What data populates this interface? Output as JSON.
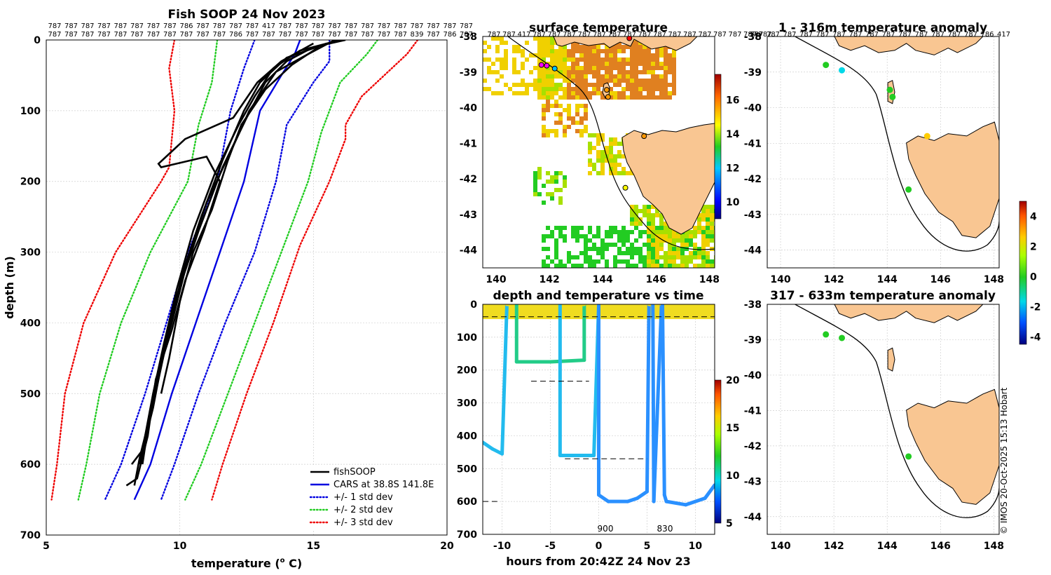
{
  "chart_data": [
    {
      "type": "line",
      "title": "Fish SOOP 24 Nov 2023",
      "xlabel": "temperature (",
      "xlabel_sup": "o",
      "xlabel_end": " C)",
      "ylabel": "depth (m)",
      "xlim": [
        5,
        20
      ],
      "ylim": [
        0,
        700
      ],
      "xticks": [
        5,
        10,
        15,
        20
      ],
      "yticks": [
        0,
        100,
        200,
        300,
        400,
        500,
        600,
        700
      ],
      "top_row1": [
        "787",
        "787",
        "787",
        "787",
        "787",
        "787",
        "787",
        "787",
        "786",
        "787",
        "787",
        "787",
        "787",
        "417",
        "787",
        "787",
        "787",
        "787",
        "787",
        "787",
        "787",
        "787",
        "787",
        "787",
        "787",
        "787"
      ],
      "top_row2": [
        "787",
        "787",
        "787",
        "787",
        "787",
        "787",
        "787",
        "787",
        "787",
        "787",
        "787",
        "786",
        "787",
        "787",
        "787",
        "787",
        "787",
        "787",
        "787",
        "787",
        "787",
        "787",
        "839",
        "787",
        "786",
        "787"
      ],
      "legend": [
        {
          "label": "fishSOOP",
          "color": "#000000",
          "style": "solid"
        },
        {
          "label": "CARS at 38.8S 141.8E",
          "color": "#0000e0",
          "style": "solid"
        },
        {
          "label": "+/- 1 std dev",
          "color": "#0000e0",
          "style": "dotted"
        },
        {
          "label": "+/- 2 std dev",
          "color": "#22cc22",
          "style": "dotted"
        },
        {
          "label": "+/- 3 std dev",
          "color": "#ee0000",
          "style": "dotted"
        }
      ],
      "series": [
        {
          "name": "CARS",
          "color": "#0000e0",
          "style": "solid",
          "points": [
            [
              14.5,
              0
            ],
            [
              14.3,
              20
            ],
            [
              13.8,
              50
            ],
            [
              13.0,
              100
            ],
            [
              12.4,
              200
            ],
            [
              11.5,
              300
            ],
            [
              10.6,
              400
            ],
            [
              9.7,
              500
            ],
            [
              8.9,
              600
            ],
            [
              8.3,
              650
            ]
          ]
        },
        {
          "name": "+1 std",
          "color": "#0000e0",
          "style": "dotted",
          "points": [
            [
              15.6,
              0
            ],
            [
              15.6,
              30
            ],
            [
              15.0,
              60
            ],
            [
              14.0,
              120
            ],
            [
              13.6,
              200
            ],
            [
              12.8,
              300
            ],
            [
              11.7,
              400
            ],
            [
              10.7,
              500
            ],
            [
              9.8,
              600
            ],
            [
              9.3,
              650
            ]
          ]
        },
        {
          "name": "-1 std",
          "color": "#0000e0",
          "style": "dotted",
          "points": [
            [
              12.8,
              0
            ],
            [
              12.4,
              40
            ],
            [
              11.9,
              100
            ],
            [
              11.4,
              200
            ],
            [
              10.3,
              300
            ],
            [
              9.5,
              400
            ],
            [
              8.7,
              500
            ],
            [
              7.8,
              600
            ],
            [
              7.2,
              650
            ]
          ]
        },
        {
          "name": "+2 std",
          "color": "#22cc22",
          "style": "dotted",
          "points": [
            [
              17.4,
              0
            ],
            [
              17.0,
              20
            ],
            [
              16.0,
              60
            ],
            [
              15.3,
              130
            ],
            [
              14.8,
              200
            ],
            [
              14.0,
              280
            ],
            [
              12.8,
              400
            ],
            [
              11.8,
              500
            ],
            [
              10.8,
              600
            ],
            [
              10.2,
              650
            ]
          ]
        },
        {
          "name": "-2 std",
          "color": "#22cc22",
          "style": "dotted",
          "points": [
            [
              11.4,
              0
            ],
            [
              11.2,
              60
            ],
            [
              10.7,
              120
            ],
            [
              10.3,
              200
            ],
            [
              8.9,
              300
            ],
            [
              7.8,
              400
            ],
            [
              7.0,
              500
            ],
            [
              6.5,
              600
            ],
            [
              6.2,
              650
            ]
          ]
        },
        {
          "name": "+3 std",
          "color": "#ee0000",
          "style": "dotted",
          "points": [
            [
              18.9,
              0
            ],
            [
              18.5,
              20
            ],
            [
              16.8,
              80
            ],
            [
              16.2,
              120
            ],
            [
              16.2,
              140
            ],
            [
              15.6,
              200
            ],
            [
              14.5,
              290
            ],
            [
              13.5,
              400
            ],
            [
              12.5,
              500
            ],
            [
              11.6,
              600
            ],
            [
              11.2,
              650
            ]
          ]
        },
        {
          "name": "-3 std",
          "color": "#ee0000",
          "style": "dotted",
          "points": [
            [
              9.8,
              0
            ],
            [
              9.6,
              40
            ],
            [
              9.8,
              100
            ],
            [
              9.6,
              180
            ],
            [
              9.3,
              200
            ],
            [
              7.6,
              300
            ],
            [
              6.4,
              400
            ],
            [
              5.7,
              500
            ],
            [
              5.4,
              600
            ],
            [
              5.2,
              650
            ]
          ]
        },
        {
          "name": "fishSOOP 1",
          "color": "#000000",
          "style": "solid",
          "points": [
            [
              16.0,
              0
            ],
            [
              14.5,
              15
            ],
            [
              13.5,
              40
            ],
            [
              12.8,
              80
            ],
            [
              12.2,
              120
            ],
            [
              11.3,
              190
            ],
            [
              10.5,
              270
            ],
            [
              9.9,
              350
            ],
            [
              9.4,
              430
            ],
            [
              9.0,
              500
            ],
            [
              8.7,
              560
            ],
            [
              8.5,
              600
            ]
          ]
        },
        {
          "name": "fishSOOP 2",
          "color": "#000000",
          "style": "solid",
          "points": [
            [
              15.5,
              5
            ],
            [
              14.0,
              25
            ],
            [
              13.0,
              60
            ],
            [
              12.4,
              100
            ],
            [
              11.6,
              170
            ],
            [
              10.8,
              250
            ],
            [
              10.1,
              330
            ],
            [
              9.6,
              410
            ],
            [
              9.2,
              480
            ],
            [
              8.8,
              550
            ],
            [
              8.6,
              600
            ]
          ]
        },
        {
          "name": "fishSOOP 3",
          "color": "#000000",
          "style": "solid",
          "points": [
            [
              15.8,
              0
            ],
            [
              14.8,
              20
            ],
            [
              13.6,
              45
            ],
            [
              12.6,
              100
            ],
            [
              12.0,
              150
            ],
            [
              11.0,
              230
            ],
            [
              10.3,
              310
            ],
            [
              9.7,
              400
            ],
            [
              9.2,
              470
            ],
            [
              8.9,
              530
            ],
            [
              8.5,
              590
            ],
            [
              8.3,
              630
            ]
          ]
        },
        {
          "name": "fishSOOP 4",
          "color": "#000000",
          "style": "solid",
          "points": [
            [
              15.2,
              10
            ],
            [
              14.2,
              35
            ],
            [
              13.2,
              70
            ],
            [
              12.3,
              120
            ],
            [
              11.8,
              170
            ],
            [
              11.2,
              240
            ],
            [
              10.5,
              300
            ],
            [
              10.0,
              370
            ],
            [
              9.6,
              450
            ],
            [
              9.3,
              500
            ]
          ]
        },
        {
          "name": "fishSOOP 5",
          "color": "#000000",
          "style": "solid",
          "points": [
            [
              15.0,
              5
            ],
            [
              13.8,
              30
            ],
            [
              12.9,
              60
            ],
            [
              12.0,
              110
            ],
            [
              10.2,
              140
            ],
            [
              9.2,
              175
            ],
            [
              9.3,
              180
            ],
            [
              11.0,
              165
            ],
            [
              11.5,
              200
            ],
            [
              10.9,
              270
            ],
            [
              10.2,
              340
            ],
            [
              9.7,
              410
            ],
            [
              9.1,
              480
            ],
            [
              8.8,
              560
            ],
            [
              8.4,
              620
            ],
            [
              8.0,
              630
            ]
          ]
        },
        {
          "name": "fishSOOP 6",
          "color": "#000000",
          "style": "solid",
          "points": [
            [
              16.2,
              0
            ],
            [
              15.0,
              10
            ],
            [
              14.0,
              30
            ],
            [
              13.2,
              60
            ],
            [
              12.5,
              110
            ],
            [
              11.6,
              180
            ],
            [
              10.7,
              270
            ],
            [
              9.9,
              360
            ],
            [
              9.4,
              440
            ],
            [
              9.0,
              520
            ],
            [
              8.6,
              580
            ],
            [
              8.2,
              600
            ]
          ]
        }
      ]
    },
    {
      "type": "heatmap",
      "title": "surface temperature",
      "xlim": [
        139.5,
        148.2
      ],
      "ylim": [
        -44.5,
        -38
      ],
      "xticks": [
        140,
        142,
        144,
        146,
        148
      ],
      "yticks": [
        -38,
        -39,
        -40,
        -41,
        -42,
        -43,
        -44
      ],
      "top_row": [
        "787",
        "787",
        "417",
        "787",
        "787",
        "787",
        "787",
        "787",
        "787",
        "787",
        "787",
        "787",
        "787",
        "787",
        "787",
        "787",
        "787",
        "787",
        "787"
      ],
      "colorbar": {
        "min": 9,
        "max": 17.5,
        "ticks": [
          10,
          12,
          14,
          16
        ]
      }
    },
    {
      "type": "scatter",
      "title": "depth and temperature vs time",
      "xlabel": "hours from 20:42Z 24 Nov 23",
      "ylabel": "",
      "xlim": [
        -12,
        12
      ],
      "ylim": [
        0,
        700
      ],
      "xticks": [
        -10,
        -5,
        0,
        5,
        10
      ],
      "yticks": [
        0,
        100,
        200,
        300,
        400,
        500,
        600,
        700
      ],
      "annotations": [
        "900",
        "830"
      ],
      "colorbar": {
        "min": 5,
        "max": 20,
        "ticks": [
          5,
          10,
          15,
          20
        ]
      },
      "series": [
        {
          "name": "depth trace",
          "points": [
            [
              -12,
              420
            ],
            [
              -11,
              440
            ],
            [
              -10,
              455
            ],
            [
              -9.5,
              0
            ],
            [
              -8.5,
              0
            ],
            [
              -8.5,
              175
            ],
            [
              -5,
              175
            ],
            [
              -1.5,
              170
            ],
            [
              -1.5,
              0
            ],
            [
              -4,
              0
            ],
            [
              -4,
              460
            ],
            [
              -0.5,
              460
            ],
            [
              0,
              0
            ],
            [
              0,
              580
            ],
            [
              1,
              600
            ],
            [
              3,
              600
            ],
            [
              4,
              590
            ],
            [
              5,
              570
            ],
            [
              5.2,
              0
            ],
            [
              5.6,
              0
            ],
            [
              5.7,
              600
            ],
            [
              6.5,
              0
            ],
            [
              6.6,
              0
            ],
            [
              6.8,
              580
            ],
            [
              7,
              600
            ],
            [
              9,
              610
            ],
            [
              11,
              590
            ],
            [
              12,
              550
            ]
          ]
        }
      ]
    },
    {
      "type": "scatter",
      "title": "1 - 316m temperature anomaly",
      "xlim": [
        139.5,
        148.2
      ],
      "ylim": [
        -44.5,
        -38
      ],
      "xticks": [
        140,
        142,
        144,
        146,
        148
      ],
      "yticks": [
        -38,
        -39,
        -40,
        -41,
        -42,
        -43,
        -44
      ],
      "top_row": [
        "787",
        "787",
        "787",
        "787",
        "787",
        "787",
        "787",
        "787",
        "787",
        "787",
        "787",
        "787",
        "787",
        "787",
        "786",
        "417"
      ],
      "points": [
        [
          141.7,
          -38.8,
          0.5
        ],
        [
          142.3,
          -38.95,
          -1.3
        ],
        [
          144.1,
          -39.5,
          1.0
        ],
        [
          144.2,
          -39.7,
          0.8
        ],
        [
          145.5,
          -40.8,
          2.5
        ],
        [
          144.8,
          -42.3,
          0.3
        ]
      ]
    },
    {
      "type": "scatter",
      "title": "317 - 633m temperature anomaly",
      "xlim": [
        139.5,
        148.2
      ],
      "ylim": [
        -44.5,
        -38
      ],
      "xticks": [
        140,
        142,
        144,
        146,
        148
      ],
      "yticks": [
        -38,
        -39,
        -40,
        -41,
        -42,
        -43,
        -44
      ],
      "points": [
        [
          141.7,
          -38.85,
          0.2
        ],
        [
          142.3,
          -38.95,
          0.3
        ],
        [
          144.8,
          -42.3,
          0.2
        ]
      ],
      "colorbar": {
        "min": -4.5,
        "max": 5,
        "ticks": [
          -4,
          -2,
          0,
          2,
          4
        ]
      }
    }
  ],
  "copyright": "© IMOS 20-Oct-2025 15:13 Hobart"
}
